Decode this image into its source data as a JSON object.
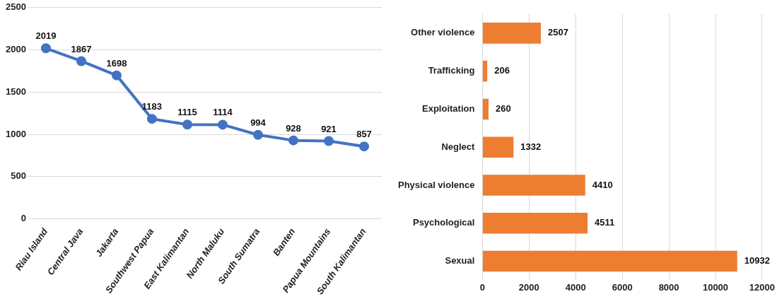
{
  "chart_data": [
    {
      "type": "line",
      "categories": [
        "Riau Island",
        "Central Java",
        "Jakarta",
        "Southwest Papua",
        "East Kalimantan",
        "North Maluku",
        "South Sumatra",
        "Banten",
        "Papua Mountains",
        "South Kalimantan"
      ],
      "values": [
        2019,
        1867,
        1698,
        1183,
        1115,
        1114,
        994,
        928,
        921,
        857
      ],
      "color": "#4472c4",
      "ylim": [
        0,
        2500
      ],
      "yticks": [
        0,
        500,
        1000,
        1500,
        2000,
        2500
      ],
      "grid": "y",
      "marker": "circle",
      "data_labels": true,
      "legend": false
    },
    {
      "type": "bar",
      "orientation": "horizontal",
      "categories": [
        "Other violence",
        "Trafficking",
        "Exploitation",
        "Neglect",
        "Physical violence",
        "Psychological",
        "Sexual"
      ],
      "values": [
        2507,
        206,
        260,
        1332,
        4410,
        4511,
        10932
      ],
      "color": "#ed7d31",
      "xlim": [
        0,
        12000
      ],
      "xticks": [
        0,
        2000,
        4000,
        6000,
        8000,
        10000,
        12000
      ],
      "grid": "x",
      "data_labels": true,
      "legend": false
    }
  ]
}
